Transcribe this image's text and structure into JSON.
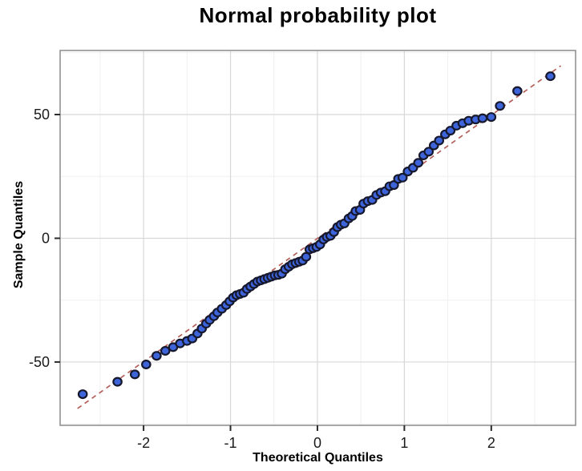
{
  "chart_data": {
    "type": "scatter",
    "title": "Normal probability plot",
    "xlabel": "Theoretical Quantiles",
    "ylabel": "Sample Quantiles",
    "xlim": [
      -2.96,
      2.97
    ],
    "ylim": [
      -75.6,
      75.9
    ],
    "grid": true,
    "legend": "none",
    "x_major_ticks": [
      -2,
      -1,
      0,
      1,
      2
    ],
    "x_tick_labels": [
      "-2",
      "-1",
      "0",
      "1",
      "2"
    ],
    "x_minor_ticks": [
      -2.5,
      -1.5,
      -0.5,
      0.5,
      1.5,
      2.5
    ],
    "y_major_ticks": [
      -50,
      0,
      50
    ],
    "y_tick_labels": [
      "-50",
      "0",
      "50"
    ],
    "y_minor_ticks": [
      -75,
      -25,
      25,
      75
    ],
    "reference_line": {
      "style": "dashed",
      "x1": -2.76,
      "y1": -68.8,
      "x2": 2.8,
      "y2": 69.7
    },
    "points": [
      [
        -2.7,
        -63
      ],
      [
        -2.3,
        -58
      ],
      [
        -2.1,
        -55
      ],
      [
        -1.97,
        -51
      ],
      [
        -1.85,
        -47.5
      ],
      [
        -1.75,
        -45.5
      ],
      [
        -1.66,
        -44
      ],
      [
        -1.58,
        -42.5
      ],
      [
        -1.5,
        -41.5
      ],
      [
        -1.44,
        -40.5
      ],
      [
        -1.38,
        -38.5
      ],
      [
        -1.33,
        -36.5
      ],
      [
        -1.28,
        -34.5
      ],
      [
        -1.24,
        -33
      ],
      [
        -1.19,
        -31.5
      ],
      [
        -1.15,
        -30
      ],
      [
        -1.1,
        -28.5
      ],
      [
        -1.05,
        -27
      ],
      [
        -1.01,
        -25.5
      ],
      [
        -0.97,
        -24
      ],
      [
        -0.93,
        -23
      ],
      [
        -0.89,
        -22.5
      ],
      [
        -0.85,
        -22
      ],
      [
        -0.81,
        -20.5
      ],
      [
        -0.77,
        -19.5
      ],
      [
        -0.73,
        -18.5
      ],
      [
        -0.69,
        -17.5
      ],
      [
        -0.65,
        -17
      ],
      [
        -0.61,
        -16.5
      ],
      [
        -0.57,
        -16
      ],
      [
        -0.53,
        -15.5
      ],
      [
        -0.49,
        -15
      ],
      [
        -0.45,
        -14.8
      ],
      [
        -0.41,
        -14.3
      ],
      [
        -0.37,
        -12.5
      ],
      [
        -0.33,
        -11.5
      ],
      [
        -0.29,
        -10.5
      ],
      [
        -0.25,
        -10
      ],
      [
        -0.21,
        -9.5
      ],
      [
        -0.17,
        -9
      ],
      [
        -0.13,
        -7.5
      ],
      [
        -0.09,
        -4.5
      ],
      [
        -0.05,
        -4
      ],
      [
        -0.01,
        -3.5
      ],
      [
        0.03,
        -2.5
      ],
      [
        0.07,
        -0.5
      ],
      [
        0.11,
        0.5
      ],
      [
        0.15,
        1
      ],
      [
        0.19,
        2.5
      ],
      [
        0.23,
        4.5
      ],
      [
        0.27,
        5.5
      ],
      [
        0.31,
        6
      ],
      [
        0.36,
        8
      ],
      [
        0.4,
        9
      ],
      [
        0.44,
        11
      ],
      [
        0.49,
        11.5
      ],
      [
        0.53,
        14
      ],
      [
        0.58,
        15
      ],
      [
        0.63,
        15.5
      ],
      [
        0.68,
        17.5
      ],
      [
        0.73,
        18.5
      ],
      [
        0.78,
        19
      ],
      [
        0.83,
        21
      ],
      [
        0.88,
        21.5
      ],
      [
        0.93,
        24
      ],
      [
        0.98,
        24.5
      ],
      [
        1.04,
        27
      ],
      [
        1.1,
        28.5
      ],
      [
        1.16,
        30.5
      ],
      [
        1.22,
        33.5
      ],
      [
        1.28,
        35
      ],
      [
        1.34,
        37.5
      ],
      [
        1.4,
        39.5
      ],
      [
        1.47,
        42
      ],
      [
        1.53,
        43.5
      ],
      [
        1.6,
        45.5
      ],
      [
        1.67,
        46.5
      ],
      [
        1.74,
        47.5
      ],
      [
        1.82,
        48
      ],
      [
        1.9,
        48.5
      ],
      [
        2.0,
        49
      ],
      [
        2.1,
        53.5
      ],
      [
        2.3,
        59.5
      ],
      [
        2.68,
        65.5
      ]
    ],
    "colors": {
      "point_fill": "#3E64DA",
      "point_stroke": "#16182E",
      "reference_line": "#B4605A",
      "grid_major": "#D8D8D8",
      "grid_minor": "#EFEFEF",
      "plot_border": "#8C8C8C",
      "tick_mark": "#2B2B2B",
      "background": "#FFFFFF"
    }
  }
}
